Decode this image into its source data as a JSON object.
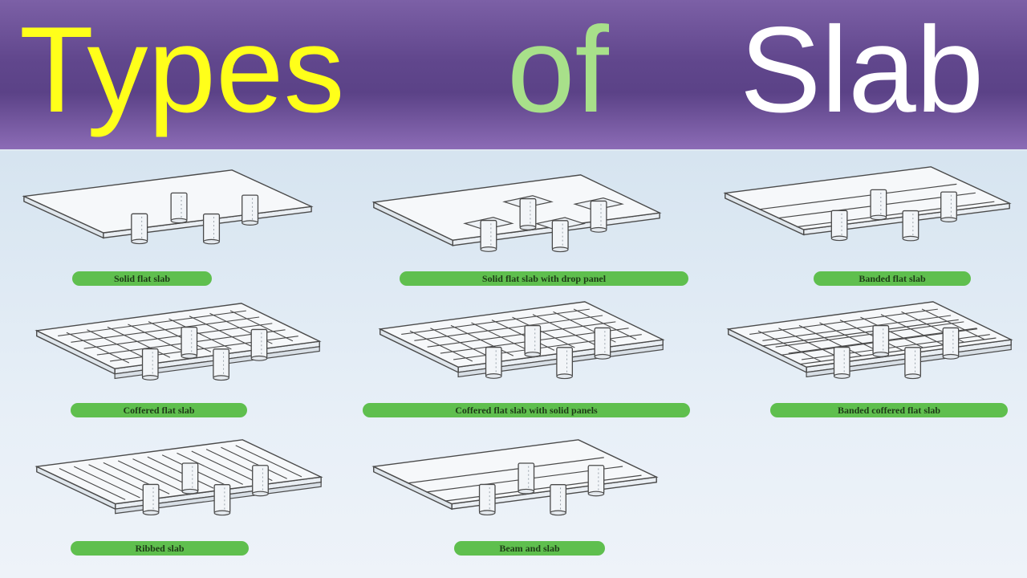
{
  "title": {
    "word1": "Types",
    "word2": "of",
    "word3": "Slab"
  },
  "colors": {
    "banner": "#5b4287",
    "word1": "#ffff1a",
    "word2": "#a8e08a",
    "word3": "#ffffff",
    "label_bg": "#5fbf4e",
    "panel_bg": "#dfe9f2"
  },
  "slabs": [
    {
      "label": "Solid flat slab",
      "features": [
        "plain"
      ]
    },
    {
      "label": "Solid flat slab with drop panel",
      "features": [
        "plain",
        "drop_panels"
      ]
    },
    {
      "label": "Banded flat slab",
      "features": [
        "bands"
      ]
    },
    {
      "label": "Coffered flat slab",
      "features": [
        "grid",
        "edge_beam"
      ]
    },
    {
      "label": "Coffered flat slab with solid panels",
      "features": [
        "grid",
        "edge_beam"
      ]
    },
    {
      "label": "Banded coffered flat slab",
      "features": [
        "grid",
        "bands",
        "edge_beam"
      ]
    },
    {
      "label": "Ribbed slab",
      "features": [
        "ribs",
        "edge_beam"
      ]
    },
    {
      "label": "Beam and slab",
      "features": [
        "bands"
      ]
    }
  ]
}
